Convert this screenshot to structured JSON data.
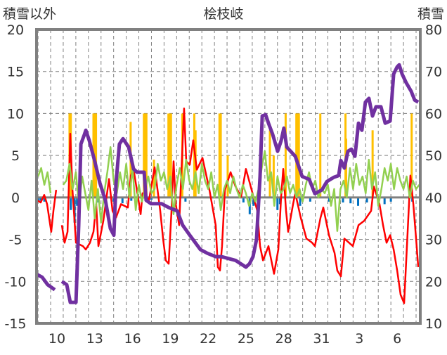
{
  "chart_data": {
    "type": "line",
    "title": "桧枝岐",
    "ylabel_left": "積雪以外",
    "ylabel_right": "積雪",
    "ylim_left": [
      -15,
      20
    ],
    "ylim_right": [
      10,
      80
    ],
    "yticks_left": [
      "20",
      "15",
      "10",
      "5",
      "0",
      "-5",
      "-10",
      "-15"
    ],
    "yticks_left_values": [
      20,
      15,
      10,
      5,
      0,
      -5,
      -10,
      -15
    ],
    "yticks_right": [
      "80",
      "70",
      "60",
      "50",
      "40",
      "30",
      "20",
      "10"
    ],
    "yticks_right_values": [
      80,
      70,
      60,
      50,
      40,
      30,
      20,
      10
    ],
    "xlim_days": [
      8.4,
      38.85
    ],
    "xticks": [
      {
        "label": "10",
        "day": 10
      },
      {
        "label": "13",
        "day": 13
      },
      {
        "label": "16",
        "day": 16
      },
      {
        "label": "19",
        "day": 19
      },
      {
        "label": "22",
        "day": 22
      },
      {
        "label": "25",
        "day": 25
      },
      {
        "label": "28",
        "day": 28
      },
      {
        "label": "31",
        "day": 31
      },
      {
        "label": "3",
        "day": 34
      },
      {
        "label": "6",
        "day": 37
      }
    ],
    "grid": true,
    "colors": {
      "temperature": "#ff0000",
      "wind": "#92d050",
      "precip": "#ffc000",
      "sunshine": "#0070c0",
      "snow": "#7030a0",
      "axis": "#808080"
    },
    "series": [
      {
        "name": "red",
        "axis": "left",
        "points": [
          [
            8.38,
            -0.3
          ],
          [
            8.71,
            -0.6
          ],
          [
            8.99,
            0.3
          ],
          [
            9.22,
            -0.8
          ],
          [
            9.55,
            -4.1
          ],
          [
            9.72,
            -1.6
          ],
          [
            9.94,
            0.9
          ],
          null,
          [
            10.39,
            -3.3
          ],
          [
            10.61,
            -5.4
          ],
          [
            10.84,
            -4.1
          ],
          [
            11.06,
            7.6
          ],
          [
            11.23,
            0.9
          ],
          [
            11.51,
            -5.4
          ],
          [
            12.06,
            -5.8
          ],
          [
            12.29,
            -6.2
          ],
          [
            12.62,
            -5.4
          ],
          [
            12.9,
            -4.1
          ],
          [
            13.12,
            -0.8
          ],
          [
            13.29,
            -5.8
          ],
          [
            13.68,
            -2.8
          ],
          [
            14.13,
            2.2
          ],
          [
            14.41,
            -1.6
          ],
          [
            14.69,
            -2.4
          ],
          [
            15.08,
            -0.8
          ],
          [
            15.63,
            -1.2
          ],
          [
            15.86,
            2.6
          ],
          [
            16.08,
            3.4
          ],
          [
            16.47,
            -0.3
          ],
          [
            16.64,
            -2.0
          ],
          [
            16.8,
            0.5
          ],
          [
            17.31,
            -0.3
          ],
          [
            17.75,
            3.6
          ],
          [
            18.2,
            -1.6
          ],
          [
            18.42,
            -4.9
          ],
          [
            18.64,
            -7.5
          ],
          [
            18.87,
            -7.9
          ],
          [
            19.09,
            -1.6
          ],
          [
            19.26,
            4.3
          ],
          [
            19.43,
            -0.8
          ],
          [
            19.7,
            -3.3
          ],
          [
            20.09,
            10.6
          ],
          [
            20.26,
            4.3
          ],
          [
            20.54,
            3.9
          ],
          [
            20.82,
            6.8
          ],
          [
            21.1,
            3.3
          ],
          [
            21.55,
            4.7
          ],
          [
            22.1,
            0.9
          ],
          [
            22.6,
            -3.3
          ],
          [
            22.77,
            -8.3
          ],
          [
            22.94,
            -8.7
          ],
          [
            23.1,
            -5.8
          ],
          [
            23.33,
            0.9
          ],
          [
            23.78,
            3.0
          ],
          [
            24.17,
            1.3
          ],
          [
            24.62,
            0.1
          ],
          [
            25.0,
            3.4
          ],
          [
            25.45,
            0.9
          ],
          [
            25.9,
            -1.6
          ],
          [
            26.12,
            -5.8
          ],
          [
            26.35,
            -7.5
          ],
          [
            26.79,
            -5.8
          ],
          [
            27.23,
            -9.1
          ],
          [
            27.57,
            -6.2
          ],
          [
            27.79,
            0.1
          ],
          [
            27.96,
            3.4
          ],
          [
            28.18,
            -1.6
          ],
          [
            28.35,
            -4.1
          ],
          [
            28.74,
            -0.8
          ],
          [
            28.91,
            0.5
          ],
          [
            29.35,
            -2.4
          ],
          [
            29.8,
            -4.9
          ],
          [
            30.25,
            -5.4
          ],
          [
            30.47,
            -5.8
          ],
          [
            30.92,
            -2.4
          ],
          [
            31.14,
            -1.2
          ],
          [
            31.59,
            -4.5
          ],
          [
            32.03,
            -6.6
          ],
          [
            32.25,
            -8.7
          ],
          [
            32.53,
            -9.4
          ],
          [
            32.81,
            -4.9
          ],
          [
            33.48,
            -5.8
          ],
          [
            33.93,
            -3.3
          ],
          [
            34.37,
            -2.8
          ],
          [
            34.93,
            -1.6
          ],
          [
            35.15,
            1.3
          ],
          [
            35.6,
            -0.8
          ],
          [
            35.88,
            -3.3
          ],
          [
            36.16,
            -5.4
          ],
          [
            36.44,
            -4.5
          ],
          [
            36.72,
            -6.2
          ],
          [
            37.0,
            -8.7
          ],
          [
            37.27,
            -11.6
          ],
          [
            37.55,
            -12.6
          ],
          [
            37.83,
            -4.1
          ],
          [
            38.05,
            2.6
          ],
          [
            38.28,
            -0.8
          ],
          [
            38.5,
            -4.9
          ],
          [
            38.67,
            -8.3
          ]
        ]
      },
      {
        "name": "green",
        "axis": "left",
        "x_start": 8.5,
        "step": 0.25,
        "values": [
          2.5,
          3.5,
          1.5,
          3,
          0.5,
          null,
          null,
          null,
          1.5,
          2,
          4,
          1,
          3,
          -1,
          2.5,
          0.5,
          -1.5,
          2,
          -2.5,
          1,
          -3,
          0.5,
          3,
          6,
          2,
          0.5,
          3,
          1,
          4,
          0,
          3.5,
          -1.5,
          1.5,
          -0.5,
          1,
          2.5,
          0.5,
          1,
          4,
          2,
          3,
          1,
          2.5,
          -2,
          1.5,
          3.5,
          1,
          4.5,
          2,
          1,
          3,
          0.5,
          4,
          2,
          1,
          3,
          0,
          1.5,
          -1.5,
          1,
          2,
          0.5,
          2.5,
          1,
          0,
          1.5,
          0.5,
          -1,
          0.5,
          -0.5,
          1,
          3.5,
          5.5,
          2,
          3,
          -1,
          2.5,
          0.5,
          1,
          2.5,
          0.5,
          1.5,
          0,
          1,
          -0.5,
          1.5,
          3,
          1,
          2,
          0,
          1,
          0.5,
          1.5,
          -1,
          1,
          -4,
          1,
          2,
          0,
          3.5,
          1,
          4,
          1.5,
          2.5,
          0.5,
          4.5,
          1,
          3,
          -1,
          1,
          3.5,
          2,
          4,
          1,
          3.5,
          2,
          1,
          2.5,
          0,
          2,
          1,
          1.5
        ]
      },
      {
        "name": "orange-bars",
        "axis": "left",
        "type": "bar",
        "points": [
          [
            11.0,
            10
          ],
          [
            11.1,
            10
          ],
          [
            12.9,
            10
          ],
          [
            13.0,
            10
          ],
          [
            13.1,
            10
          ],
          [
            15.85,
            9
          ],
          [
            16.9,
            10
          ],
          [
            17.0,
            10
          ],
          [
            17.1,
            10
          ],
          [
            17.7,
            4.5
          ],
          [
            18.85,
            10
          ],
          [
            18.95,
            10
          ],
          [
            19.05,
            10
          ],
          [
            19.95,
            10
          ],
          [
            20.9,
            10
          ],
          [
            21.0,
            8
          ],
          [
            22.9,
            10
          ],
          [
            23.0,
            10
          ],
          [
            23.55,
            5
          ],
          [
            26.9,
            8
          ],
          [
            27.2,
            5
          ],
          [
            28.15,
            10
          ],
          [
            29.0,
            10
          ],
          [
            29.1,
            10
          ],
          [
            29.2,
            10
          ],
          [
            30.9,
            10
          ],
          [
            32.9,
            10
          ],
          [
            32.95,
            7
          ],
          [
            35.05,
            8
          ],
          [
            38.15,
            10
          ]
        ]
      },
      {
        "name": "blue-bars",
        "axis": "left",
        "type": "bar",
        "points": [
          [
            8.5,
            -0.5
          ],
          [
            8.7,
            -0.4
          ],
          [
            9.0,
            -0.5
          ],
          [
            11.1,
            -1.5
          ],
          [
            11.4,
            -3
          ],
          [
            11.6,
            -1
          ],
          [
            13.3,
            -0.6
          ],
          [
            14.5,
            -0.5
          ],
          [
            15.2,
            -0.7
          ],
          [
            15.9,
            -0.4
          ],
          [
            17.5,
            -0.3
          ],
          [
            20.2,
            -0.5
          ],
          [
            24.8,
            -0.6
          ],
          [
            25.3,
            -2
          ],
          [
            25.6,
            -1
          ],
          [
            27.5,
            -1.5
          ],
          [
            27.7,
            -0.8
          ],
          [
            29.3,
            -1
          ],
          [
            30.1,
            -0.5
          ],
          [
            31.6,
            -0.5
          ],
          [
            32.7,
            -0.6
          ],
          [
            33.3,
            -0.7
          ],
          [
            33.9,
            -1
          ],
          [
            34.6,
            -0.6
          ],
          [
            36.0,
            -0.8
          ],
          [
            36.5,
            -0.5
          ],
          [
            38.2,
            -0.5
          ]
        ]
      },
      {
        "name": "purple",
        "axis": "right",
        "points": [
          [
            8.38,
            21.7
          ],
          [
            8.83,
            21
          ],
          [
            9.27,
            19.2
          ],
          [
            9.83,
            18
          ],
          null,
          [
            10.39,
            20
          ],
          [
            10.78,
            19.2
          ],
          [
            11.06,
            15
          ],
          [
            11.51,
            15
          ],
          [
            11.73,
            33.4
          ],
          [
            11.9,
            52.7
          ],
          [
            12.18,
            55
          ],
          [
            12.29,
            56
          ],
          [
            12.57,
            53.5
          ],
          [
            13.01,
            48.5
          ],
          [
            13.4,
            43.5
          ],
          [
            13.85,
            39.3
          ],
          [
            14.24,
            32.6
          ],
          [
            14.52,
            31
          ],
          [
            14.69,
            43.5
          ],
          [
            14.96,
            52.7
          ],
          [
            15.24,
            54
          ],
          [
            15.69,
            52
          ],
          [
            16.08,
            46.8
          ],
          [
            16.36,
            46
          ],
          [
            16.92,
            46
          ],
          [
            17.08,
            39.3
          ],
          [
            17.47,
            38.5
          ],
          [
            18.31,
            38.5
          ],
          [
            18.87,
            37.6
          ],
          [
            19.54,
            36.8
          ],
          [
            19.98,
            33.4
          ],
          [
            20.54,
            31
          ],
          [
            21.38,
            27.6
          ],
          [
            21.94,
            26.7
          ],
          [
            22.6,
            25.9
          ],
          [
            23.05,
            25.9
          ],
          [
            24.17,
            25
          ],
          [
            25.0,
            23.4
          ],
          [
            25.28,
            24.2
          ],
          [
            25.56,
            25.9
          ],
          [
            25.84,
            30
          ],
          [
            26.12,
            45
          ],
          [
            26.29,
            59.4
          ],
          [
            26.56,
            59.7
          ],
          [
            26.79,
            57.7
          ],
          [
            27.12,
            55
          ],
          [
            27.51,
            51
          ],
          [
            27.79,
            53.5
          ],
          [
            28.01,
            56.5
          ],
          [
            28.24,
            52
          ],
          [
            28.91,
            49.8
          ],
          [
            29.46,
            45
          ],
          [
            30.02,
            44.3
          ],
          [
            30.47,
            40.9
          ],
          [
            31.03,
            41.8
          ],
          [
            31.42,
            43.8
          ],
          [
            31.97,
            44.8
          ],
          [
            32.36,
            45.2
          ],
          [
            32.53,
            48.8
          ],
          [
            32.81,
            47
          ],
          [
            33.09,
            51
          ],
          [
            33.37,
            51.5
          ],
          [
            33.65,
            49.8
          ],
          [
            33.93,
            57.7
          ],
          [
            34.2,
            56
          ],
          [
            34.48,
            62.7
          ],
          [
            34.76,
            63.6
          ],
          [
            35.04,
            59.4
          ],
          [
            35.32,
            61.6
          ],
          [
            35.71,
            61.6
          ],
          [
            36.05,
            57.7
          ],
          [
            36.44,
            58.2
          ],
          [
            36.72,
            69.4
          ],
          [
            37.0,
            71.1
          ],
          [
            37.16,
            71.6
          ],
          [
            37.39,
            69.4
          ],
          [
            37.72,
            67.3
          ],
          [
            38.11,
            65.3
          ],
          [
            38.39,
            63.2
          ],
          [
            38.67,
            62.7
          ]
        ]
      }
    ]
  }
}
